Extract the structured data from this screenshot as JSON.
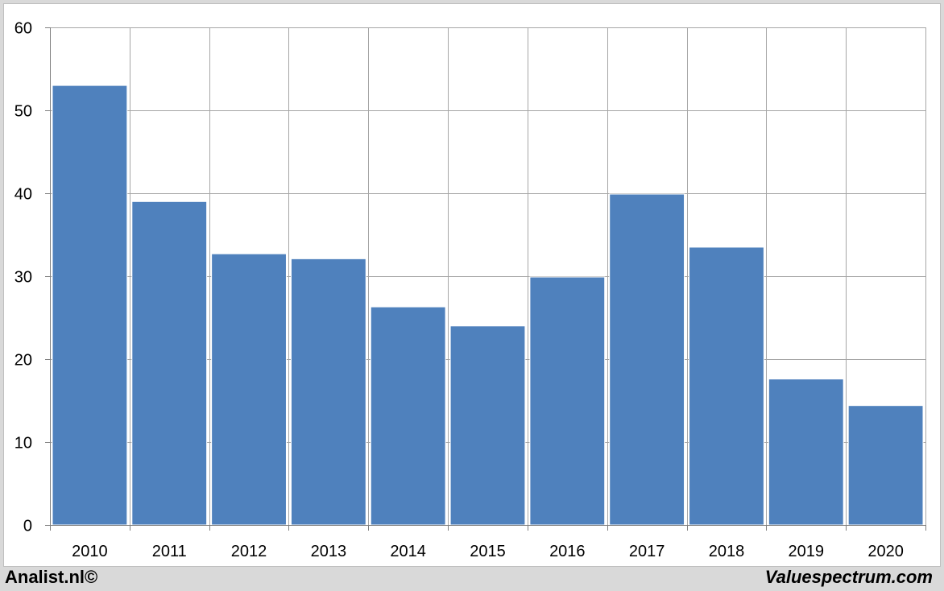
{
  "chart_data": {
    "type": "bar",
    "categories": [
      "2010",
      "2011",
      "2012",
      "2013",
      "2014",
      "2015",
      "2016",
      "2017",
      "2018",
      "2019",
      "2020"
    ],
    "values": [
      53.0,
      39.0,
      32.7,
      32.1,
      26.3,
      24.0,
      29.9,
      39.9,
      33.5,
      17.6,
      14.4
    ],
    "title": "",
    "xlabel": "",
    "ylabel": "",
    "ylim": [
      0,
      60
    ],
    "yticks": [
      "0",
      "10",
      "20",
      "30",
      "40",
      "50",
      "60"
    ],
    "grid": true,
    "bar_color": "#4f81bd",
    "grid_color": "#a6a6a6"
  },
  "footer": {
    "left": "Analist.nl©",
    "right": "Valuespectrum.com"
  }
}
